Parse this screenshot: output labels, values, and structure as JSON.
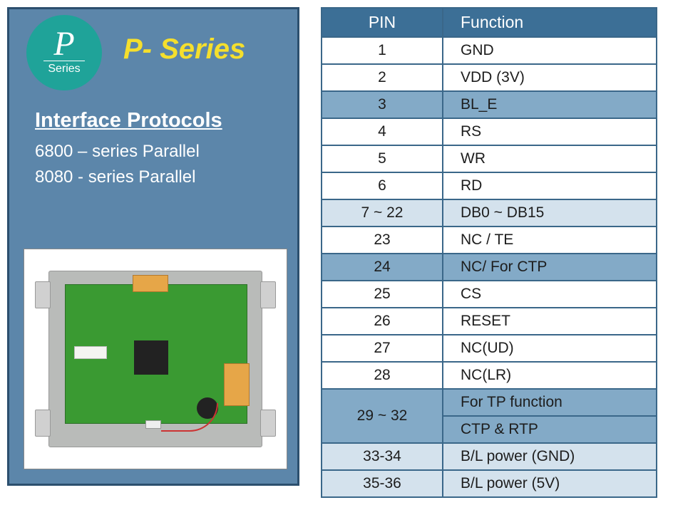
{
  "colors": {
    "panel_bg": "#5c86aa",
    "panel_border": "#2c4f6e",
    "logo_bg": "#1fa399",
    "title_color": "#f5df2d",
    "table_border": "#3a6789",
    "header_bg": "#3c6f96",
    "row_white": "#ffffff",
    "row_light": "#d4e2ed",
    "row_mid": "#83aac7",
    "text_dark": "#1d1d1d"
  },
  "logo": {
    "letter": "P",
    "sub": "Series"
  },
  "title": "P- Series",
  "section_heading": "Interface Protocols",
  "protocols": [
    "6800 – series Parallel",
    "8080 -  series Parallel"
  ],
  "table": {
    "headers": {
      "pin": "PIN",
      "func": "Function"
    },
    "rows": [
      {
        "pin": "1",
        "func": "GND",
        "shade": "white"
      },
      {
        "pin": "2",
        "func": "VDD (3V)",
        "shade": "white"
      },
      {
        "pin": "3",
        "func": "BL_E",
        "shade": "mid"
      },
      {
        "pin": "4",
        "func": "RS",
        "shade": "white"
      },
      {
        "pin": "5",
        "func": "WR",
        "shade": "white"
      },
      {
        "pin": "6",
        "func": "RD",
        "shade": "white"
      },
      {
        "pin": "7 ~ 22",
        "func": "DB0 ~ DB15",
        "shade": "light"
      },
      {
        "pin": "23",
        "func": "NC / TE",
        "shade": "white"
      },
      {
        "pin": "24",
        "func": "NC/ For CTP",
        "shade": "mid"
      },
      {
        "pin": "25",
        "func": "CS",
        "shade": "white"
      },
      {
        "pin": "26",
        "func": "RESET",
        "shade": "white"
      },
      {
        "pin": "27",
        "func": "NC(UD)",
        "shade": "white"
      },
      {
        "pin": "28",
        "func": "NC(LR)",
        "shade": "white"
      },
      {
        "pin": "29 ~ 32",
        "func": "For TP function",
        "shade": "mid",
        "pin_rowspan": 2
      },
      {
        "pin": null,
        "func": "CTP & RTP",
        "shade": "mid"
      },
      {
        "pin": "33-34",
        "func": "B/L power (GND)",
        "shade": "light"
      },
      {
        "pin": "35-36",
        "func": "B/L power (5V)",
        "shade": "light"
      }
    ]
  }
}
